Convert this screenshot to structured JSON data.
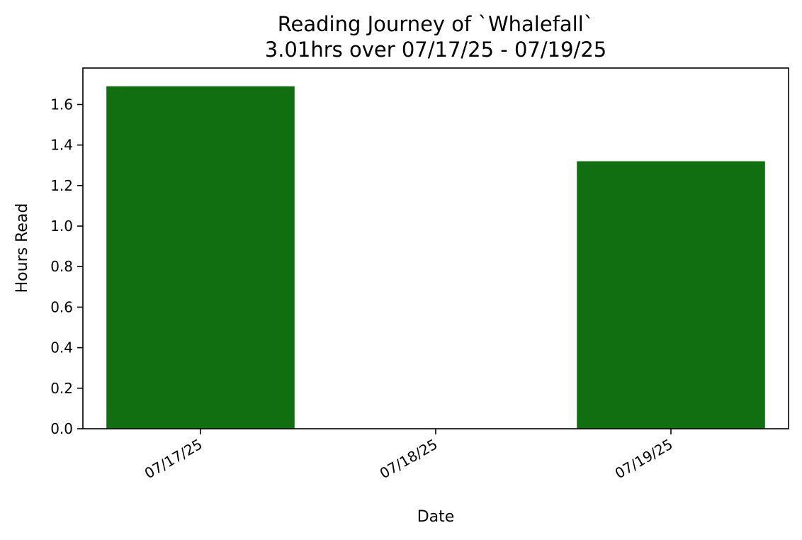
{
  "chart_data": {
    "type": "bar",
    "title": "Reading Journey of `Whalefall`",
    "subtitle": "3.01hrs over 07/17/25 - 07/19/25",
    "xlabel": "Date",
    "ylabel": "Hours Read",
    "categories": [
      "07/17/25",
      "07/18/25",
      "07/19/25"
    ],
    "values": [
      1.69,
      0,
      1.32
    ],
    "ylim": [
      0,
      1.78
    ],
    "yticks": [
      "0.0",
      "0.2",
      "0.4",
      "0.6",
      "0.8",
      "1.0",
      "1.2",
      "1.4",
      "1.6"
    ],
    "bar_color": "#116f11",
    "grid": false,
    "legend": "none"
  }
}
